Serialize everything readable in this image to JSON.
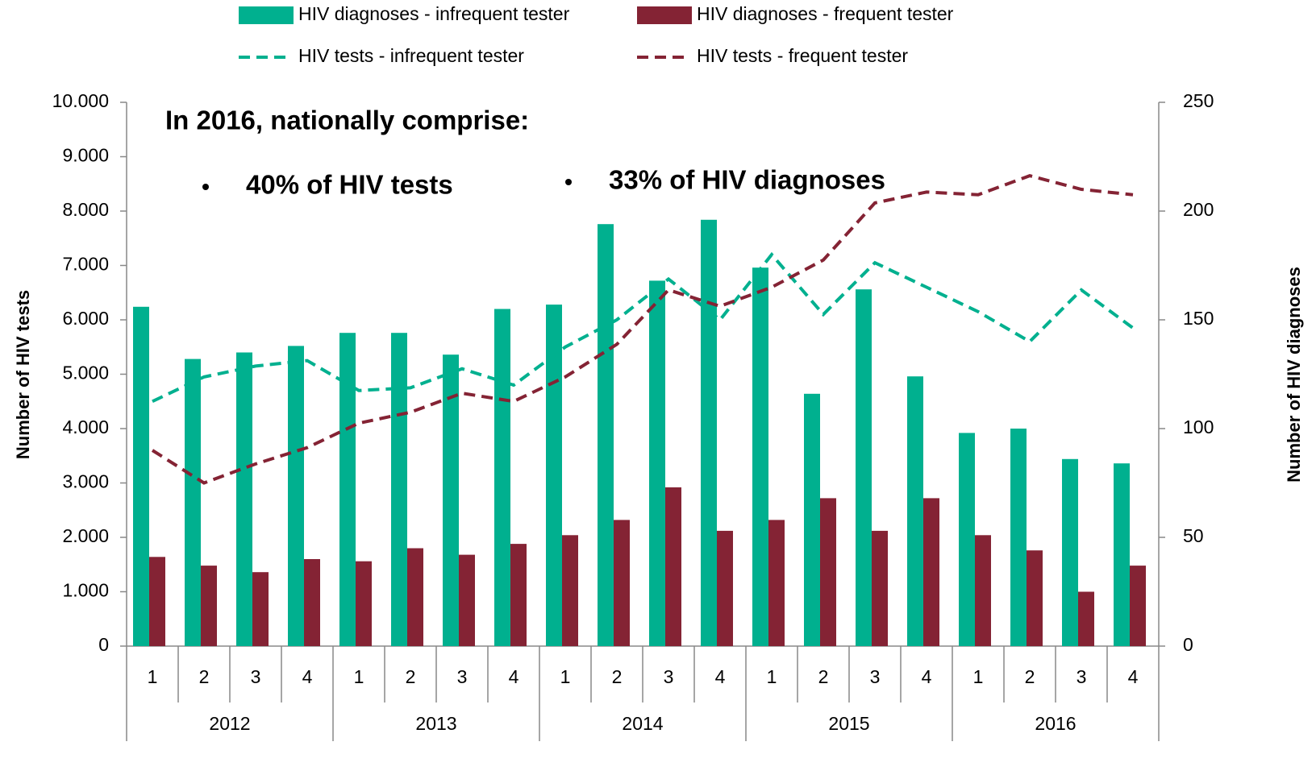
{
  "chart_data": {
    "type": "bar_line",
    "annotations": [
      "In 2016, nationally comprise:",
      "40% of HIV tests",
      "33% of HIV diagnoses"
    ],
    "ylabel": "Number of HIV tests",
    "y2label": "Number of HIV diagnoses",
    "categories": [
      "1",
      "2",
      "3",
      "4",
      "1",
      "2",
      "3",
      "4",
      "1",
      "2",
      "3",
      "4",
      "1",
      "2",
      "3",
      "4",
      "1",
      "2",
      "3",
      "4"
    ],
    "groups": [
      "2012",
      "2013",
      "2014",
      "2015",
      "2016"
    ],
    "ylim": [
      0,
      10000
    ],
    "yticks": [
      0,
      {
        "value": 1000,
        "label": "1.000"
      },
      {
        "value": 2000,
        "label": "2.000"
      },
      {
        "value": 3000,
        "label": "3.000"
      },
      {
        "value": 4000,
        "label": "4.000"
      },
      {
        "value": 5000,
        "label": "5.000"
      },
      {
        "value": 6000,
        "label": "6.000"
      },
      {
        "value": 7000,
        "label": "7.000"
      },
      {
        "value": 8000,
        "label": "8.000"
      },
      {
        "value": 9000,
        "label": "9.000"
      },
      {
        "value": 10000,
        "label": "10.000"
      }
    ],
    "y2lim": [
      0,
      250
    ],
    "y2ticks": [
      0,
      50,
      100,
      150,
      200,
      250
    ],
    "series": [
      {
        "name": "HIV diagnoses - infrequent tester",
        "type": "bar",
        "axis": "y2",
        "color": "#00b08f",
        "values": [
          156,
          132,
          135,
          138,
          144,
          144,
          134,
          155,
          157,
          194,
          168,
          196,
          174,
          116,
          164,
          124,
          98,
          100,
          86,
          84
        ]
      },
      {
        "name": "HIV diagnoses - frequent tester",
        "type": "bar",
        "axis": "y2",
        "color": "#842334",
        "values": [
          41,
          37,
          34,
          40,
          39,
          45,
          42,
          47,
          51,
          58,
          73,
          53,
          58,
          68,
          53,
          68,
          51,
          44,
          25,
          37
        ]
      },
      {
        "name": "HIV tests - infrequent tester",
        "type": "line",
        "dashed": true,
        "color": "#00b08f",
        "values": [
          4500,
          4950,
          5150,
          5250,
          4700,
          4750,
          5100,
          4800,
          5500,
          6000,
          6750,
          6000,
          7200,
          6100,
          7050,
          6600,
          6150,
          5600,
          6550,
          5850
        ]
      },
      {
        "name": "HIV tests - frequent tester",
        "type": "line",
        "dashed": true,
        "color": "#842334",
        "values": [
          3600,
          3000,
          3350,
          3650,
          4100,
          4300,
          4650,
          4500,
          4950,
          5550,
          6550,
          6250,
          6600,
          7100,
          8150,
          8350,
          8300,
          8650,
          8400,
          8300
        ]
      }
    ]
  }
}
